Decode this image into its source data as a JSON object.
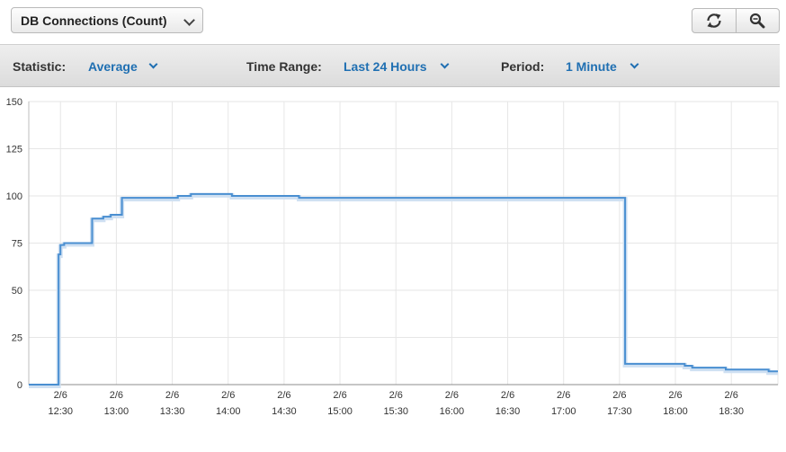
{
  "metric_select": {
    "selected": "DB Connections (Count)"
  },
  "toolbar": {
    "statistic_label": "Statistic:",
    "statistic_value": "Average",
    "time_range_label": "Time Range:",
    "time_range_value": "Last 24 Hours",
    "period_label": "Period:",
    "period_value": "1 Minute"
  },
  "colors": {
    "accent": "#1f6fb2",
    "line": "#4a8fd1",
    "grid": "#e6e6e6"
  },
  "icons": {
    "refresh": "refresh-icon",
    "zoom": "zoom-icon"
  },
  "chart_data": {
    "type": "line",
    "title": "",
    "xlabel": "",
    "ylabel": "",
    "ylim": [
      0,
      150
    ],
    "yticks": [
      "0",
      "25",
      "50",
      "75",
      "100",
      "125",
      "150"
    ],
    "xlim": [
      "12:13",
      "18:55"
    ],
    "xticks": [
      {
        "t": "12:30",
        "date": "2/6",
        "time": "12:30"
      },
      {
        "t": "13:00",
        "date": "2/6",
        "time": "13:00"
      },
      {
        "t": "13:30",
        "date": "2/6",
        "time": "13:30"
      },
      {
        "t": "14:00",
        "date": "2/6",
        "time": "14:00"
      },
      {
        "t": "14:30",
        "date": "2/6",
        "time": "14:30"
      },
      {
        "t": "15:00",
        "date": "2/6",
        "time": "15:00"
      },
      {
        "t": "15:30",
        "date": "2/6",
        "time": "15:30"
      },
      {
        "t": "16:00",
        "date": "2/6",
        "time": "16:00"
      },
      {
        "t": "16:30",
        "date": "2/6",
        "time": "16:30"
      },
      {
        "t": "17:00",
        "date": "2/6",
        "time": "17:00"
      },
      {
        "t": "17:30",
        "date": "2/6",
        "time": "17:30"
      },
      {
        "t": "18:00",
        "date": "2/6",
        "time": "18:00"
      },
      {
        "t": "18:30",
        "date": "2/6",
        "time": "18:30"
      }
    ],
    "grid": true,
    "series": [
      {
        "step": true,
        "points": [
          [
            "12:13",
            0
          ],
          [
            "12:28",
            0
          ],
          [
            "12:29",
            4
          ],
          [
            "12:29",
            69
          ],
          [
            "12:30",
            74
          ],
          [
            "12:32",
            75
          ],
          [
            "12:47",
            88
          ],
          [
            "12:53",
            89
          ],
          [
            "12:57",
            90
          ],
          [
            "13:03",
            99
          ],
          [
            "13:33",
            100
          ],
          [
            "13:40",
            101
          ],
          [
            "14:02",
            100
          ],
          [
            "14:38",
            99
          ],
          [
            "17:33",
            11
          ],
          [
            "18:05",
            10
          ],
          [
            "18:09",
            9
          ],
          [
            "18:27",
            8
          ],
          [
            "18:50",
            7
          ],
          [
            "18:55",
            7
          ]
        ]
      }
    ]
  }
}
